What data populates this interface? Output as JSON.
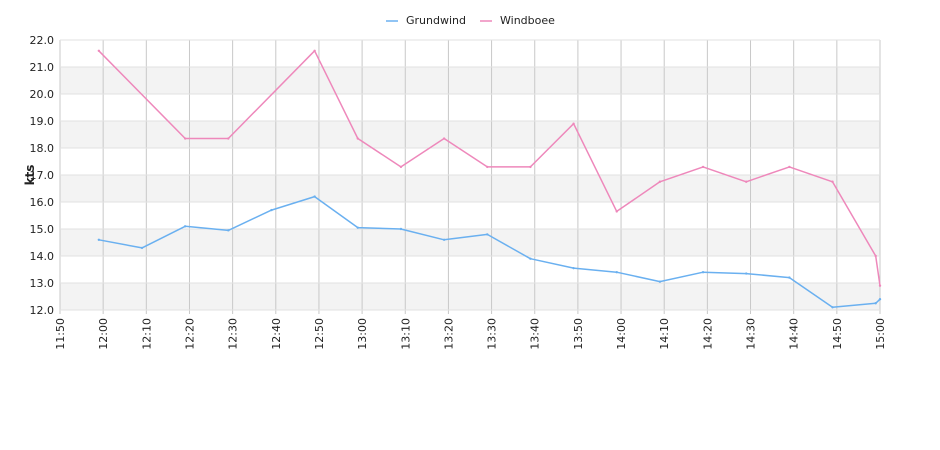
{
  "chart_data": {
    "type": "line",
    "ylabel": "kts",
    "ylim": [
      12.0,
      22.0
    ],
    "y_ticks": [
      "12.0",
      "13.0",
      "14.0",
      "15.0",
      "16.0",
      "17.0",
      "18.0",
      "19.0",
      "20.0",
      "21.0",
      "22.0"
    ],
    "x_ticks": [
      "11:50",
      "12:00",
      "12:10",
      "12:20",
      "12:30",
      "12:40",
      "12:50",
      "13:00",
      "13:10",
      "13:20",
      "13:30",
      "13:40",
      "13:50",
      "14:00",
      "14:10",
      "14:20",
      "14:30",
      "14:40",
      "14:50",
      "15:00"
    ],
    "x_range": [
      "11:50",
      "15:00"
    ],
    "grid": true,
    "legend_position": "top-center",
    "series": [
      {
        "name": "Grundwind",
        "color": "#6ab0f0",
        "points": [
          [
            "11:59",
            14.6
          ],
          [
            "12:09",
            14.3
          ],
          [
            "12:19",
            15.1
          ],
          [
            "12:29",
            14.95
          ],
          [
            "12:39",
            15.7
          ],
          [
            "12:49",
            16.2
          ],
          [
            "12:59",
            15.05
          ],
          [
            "13:09",
            15.0
          ],
          [
            "13:19",
            14.6
          ],
          [
            "13:29",
            14.8
          ],
          [
            "13:39",
            13.9
          ],
          [
            "13:49",
            13.55
          ],
          [
            "13:59",
            13.4
          ],
          [
            "14:09",
            13.05
          ],
          [
            "14:19",
            13.4
          ],
          [
            "14:29",
            13.35
          ],
          [
            "14:39",
            13.2
          ],
          [
            "14:49",
            12.1
          ],
          [
            "14:59",
            12.25
          ],
          [
            "15:00",
            12.4
          ]
        ]
      },
      {
        "name": "Windboee",
        "color": "#ee88bb",
        "points": [
          [
            "11:59",
            21.6
          ],
          [
            "12:19",
            18.35
          ],
          [
            "12:29",
            18.35
          ],
          [
            "12:49",
            21.6
          ],
          [
            "12:59",
            18.35
          ],
          [
            "13:09",
            17.3
          ],
          [
            "13:19",
            18.35
          ],
          [
            "13:29",
            17.3
          ],
          [
            "13:39",
            17.3
          ],
          [
            "13:49",
            18.9
          ],
          [
            "13:59",
            15.65
          ],
          [
            "14:09",
            16.75
          ],
          [
            "14:19",
            17.3
          ],
          [
            "14:29",
            16.75
          ],
          [
            "14:39",
            17.3
          ],
          [
            "14:49",
            16.75
          ],
          [
            "14:59",
            14.0
          ],
          [
            "15:00",
            12.9
          ]
        ]
      }
    ]
  }
}
